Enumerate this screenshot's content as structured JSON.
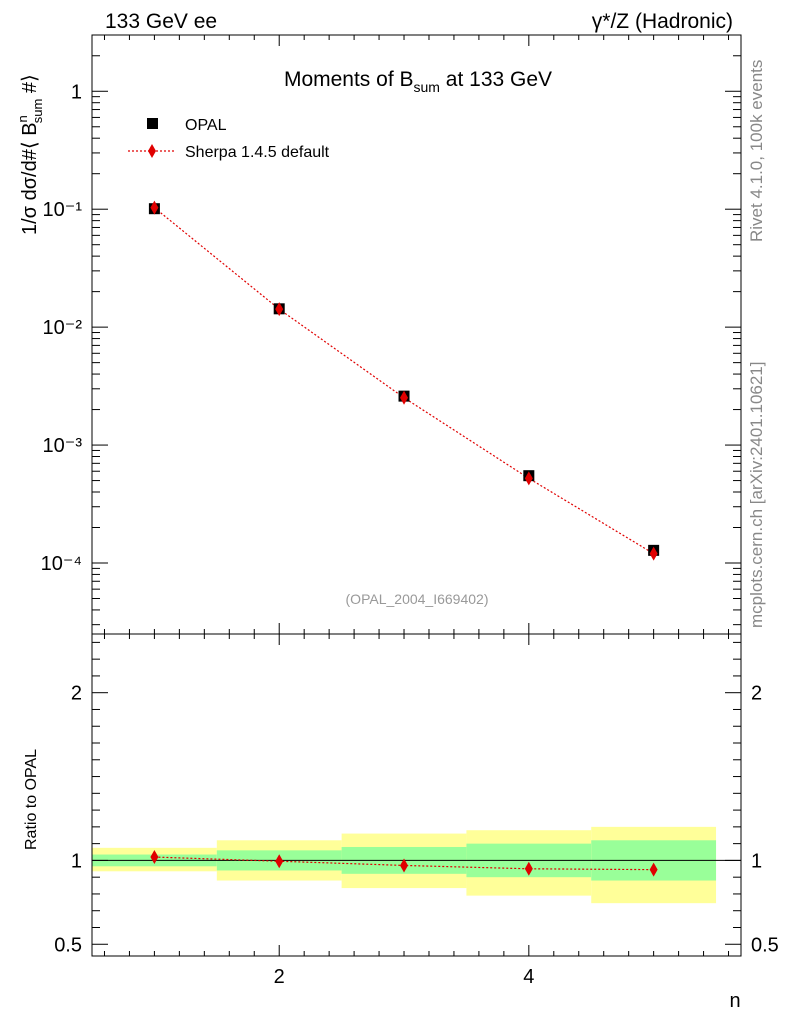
{
  "header": {
    "left_label": "133 GeV ee",
    "right_label": "γ*/Z (Hadronic)"
  },
  "side_labels": {
    "rivet": "Rivet 4.1.0,  100k events",
    "mcplots": "mcplots.cern.ch [arXiv:2401.10621]"
  },
  "chart_data": {
    "type": "scatter",
    "title_parts": {
      "prefix": "Moments of B",
      "sub": "sum",
      "suffix": " at 133 GeV"
    },
    "analysis_id": "(OPAL_2004_I669402)",
    "xlabel": "n",
    "ylabel_parts": {
      "prefix": "1/σ  dσ/d#⟨ B",
      "sup": "n",
      "sub": "sum",
      "suffix": " #⟩"
    },
    "ratio_ylabel": "Ratio to OPAL",
    "x": [
      1,
      2,
      3,
      4,
      5
    ],
    "xlim": [
      0.5,
      5.7
    ],
    "ylim_log": [
      2.5e-05,
      3.0
    ],
    "ratio_ylim": [
      0.43,
      2.35
    ],
    "x_ticks": [
      "2",
      "4"
    ],
    "y_ticks": [
      "10⁻⁴",
      "10⁻³",
      "10⁻²",
      "10⁻¹",
      "1"
    ],
    "ratio_ticks": [
      "0.5",
      "1",
      "2"
    ],
    "legend": {
      "data": "OPAL",
      "mc": "Sherpa 1.4.5 default",
      "position": "top-left"
    },
    "series": [
      {
        "name": "OPAL",
        "values": [
          0.101,
          0.0143,
          0.0026,
          0.00055,
          0.000128
        ],
        "color": "#000000"
      },
      {
        "name": "Sherpa 1.4.5 default",
        "values": [
          0.103,
          0.0142,
          0.00252,
          0.000522,
          0.00012
        ],
        "color": "#e00000"
      }
    ],
    "ratio_values": [
      1.02,
      0.995,
      0.97,
      0.95,
      0.945
    ],
    "bands": {
      "stat": [
        [
          0.965,
          1.035
        ],
        [
          0.94,
          1.06
        ],
        [
          0.92,
          1.08
        ],
        [
          0.9,
          1.1
        ],
        [
          0.88,
          1.12
        ]
      ],
      "total": [
        [
          0.935,
          1.075
        ],
        [
          0.88,
          1.12
        ],
        [
          0.835,
          1.16
        ],
        [
          0.79,
          1.18
        ],
        [
          0.745,
          1.2
        ]
      ],
      "stat_color": "#99ff99",
      "total_color": "#ffff99"
    }
  }
}
